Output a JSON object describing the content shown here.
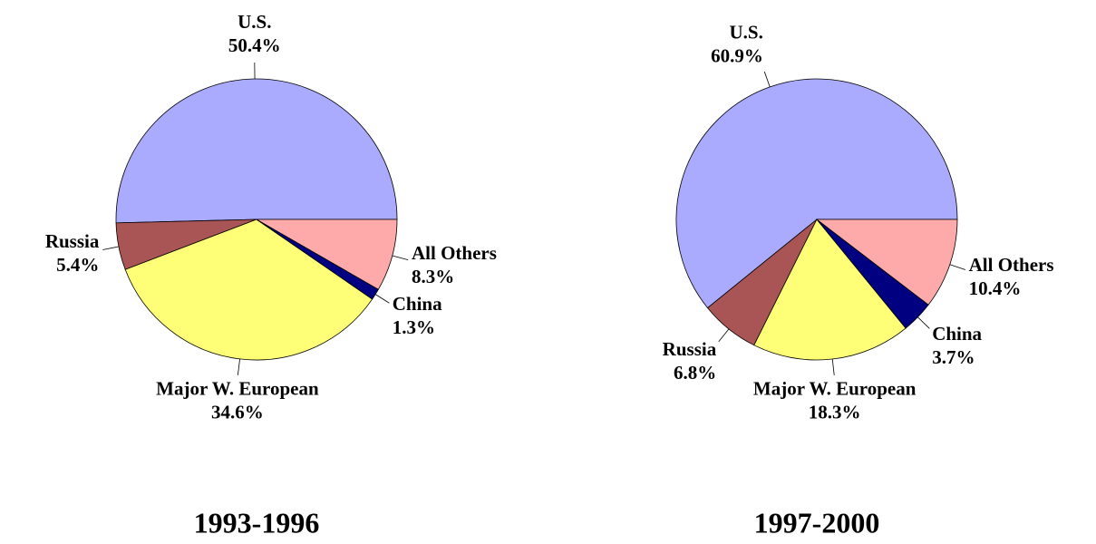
{
  "chart_data": [
    {
      "type": "pie",
      "title": "1993-1996",
      "categories": [
        "U.S.",
        "Russia",
        "Major W. European",
        "China",
        "All Others"
      ],
      "values": [
        50.4,
        5.4,
        34.6,
        1.3,
        8.3
      ],
      "value_labels": [
        "50.4%",
        "5.4%",
        "34.6%",
        "1.3%",
        "8.3%"
      ],
      "colors": [
        "#aaaaff",
        "#aa5555",
        "#ffff77",
        "#000080",
        "#ffaaaa"
      ]
    },
    {
      "type": "pie",
      "title": "1997-2000",
      "categories": [
        "U.S.",
        "Russia",
        "Major W. European",
        "China",
        "All Others"
      ],
      "values": [
        60.9,
        6.8,
        18.3,
        3.7,
        10.4
      ],
      "value_labels": [
        "60.9%",
        "6.8%",
        "18.3%",
        "3.7%",
        "10.4%"
      ],
      "colors": [
        "#aaaaff",
        "#aa5555",
        "#ffff77",
        "#000080",
        "#ffaaaa"
      ]
    }
  ]
}
